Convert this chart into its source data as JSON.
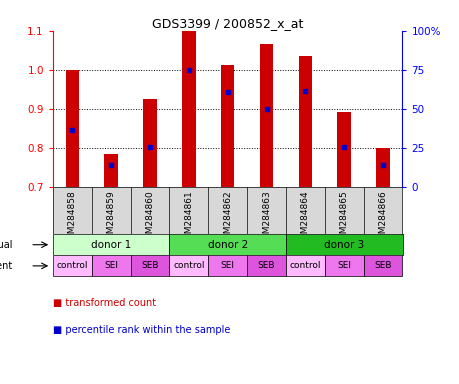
{
  "title": "GDS3399 / 200852_x_at",
  "samples": [
    "GSM284858",
    "GSM284859",
    "GSM284860",
    "GSM284861",
    "GSM284862",
    "GSM284863",
    "GSM284864",
    "GSM284865",
    "GSM284866"
  ],
  "bar_values": [
    1.0,
    0.785,
    0.925,
    1.1,
    1.012,
    1.065,
    1.035,
    0.892,
    0.8
  ],
  "dot_values": [
    0.845,
    0.755,
    0.802,
    1.0,
    0.942,
    0.9,
    0.945,
    0.802,
    0.757
  ],
  "ylim": [
    0.7,
    1.1
  ],
  "yticks": [
    0.7,
    0.8,
    0.9,
    1.0,
    1.1
  ],
  "y2labels": [
    "0",
    "25",
    "50",
    "75",
    "100%"
  ],
  "bar_color": "#cc0000",
  "dot_color": "#0000cc",
  "bar_width": 0.35,
  "individual_labels": [
    "donor 1",
    "donor 2",
    "donor 3"
  ],
  "individual_colors": [
    "#ccffcc",
    "#55dd55",
    "#22bb22"
  ],
  "agent_labels": [
    "control",
    "SEI",
    "SEB",
    "control",
    "SEI",
    "SEB",
    "control",
    "SEI",
    "SEB"
  ],
  "agent_colors_light": "#ffaaff",
  "agent_colors_dark": "#ee66ee",
  "bg_color": "#ffffff",
  "sample_bg": "#d8d8d8",
  "legend1": "transformed count",
  "legend2": "percentile rank within the sample"
}
